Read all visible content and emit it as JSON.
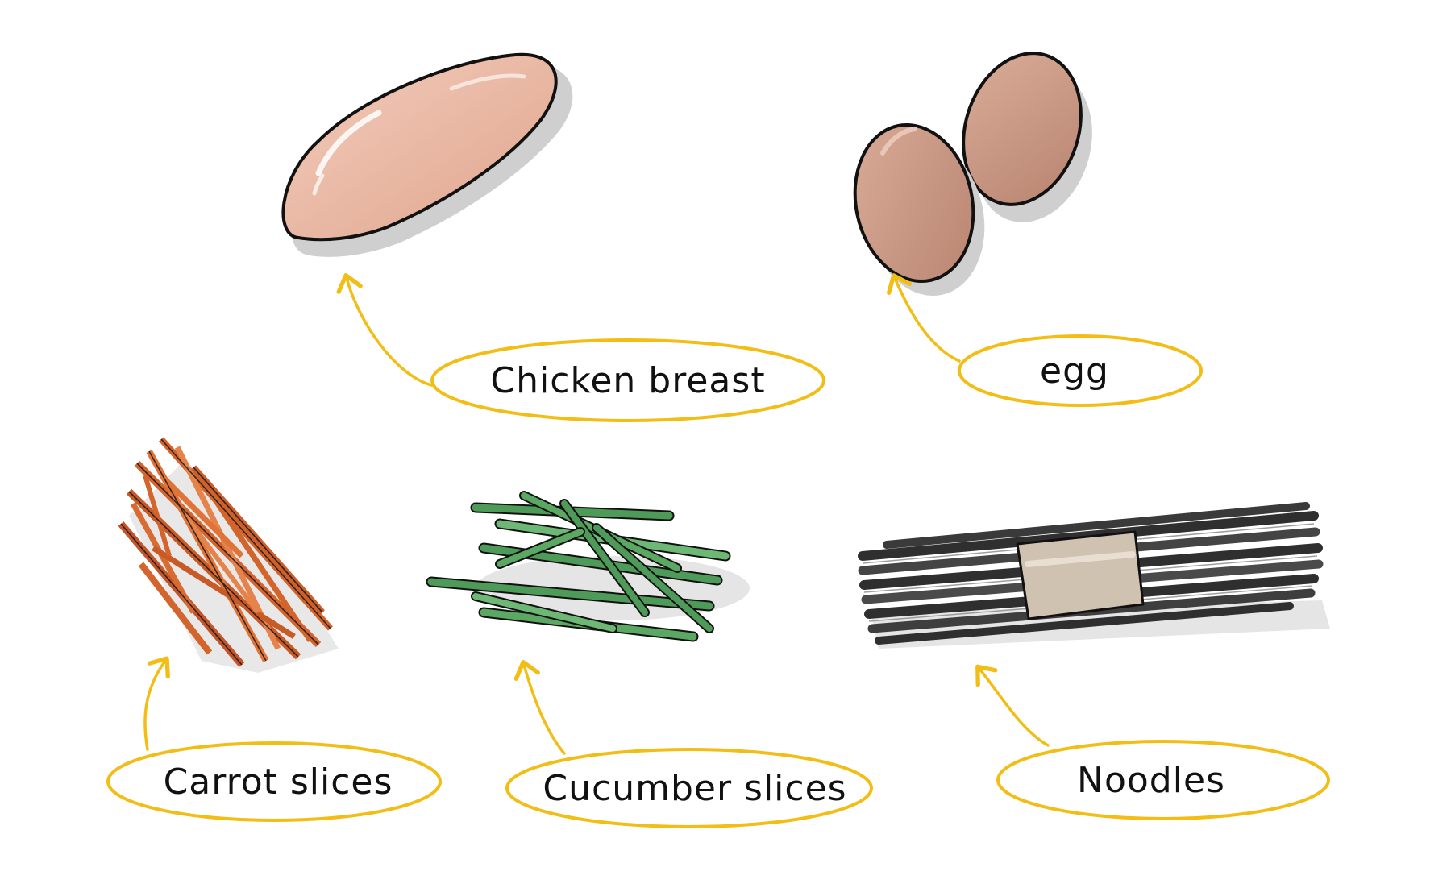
{
  "labels": {
    "chicken": "Chicken breast",
    "egg": "egg",
    "carrot": "Carrot slices",
    "cucumber": "Cucumber slices",
    "noodles": "Noodles"
  },
  "icons": {
    "chicken": "chicken-breast-icon",
    "egg": "egg-icon",
    "carrot": "carrot-slices-icon",
    "cucumber": "cucumber-slices-icon",
    "noodles": "noodles-icon"
  },
  "colors": {
    "callout": "#f2bd14",
    "outline": "#111111",
    "shadow": "#c9c9c9",
    "chicken": "#e9b8a4",
    "egg": "#c99a86",
    "carrot": "#d2642c",
    "cucumber": "#4e9a58",
    "noodles": "#3a3a3a",
    "band": "#cfc2b1"
  }
}
